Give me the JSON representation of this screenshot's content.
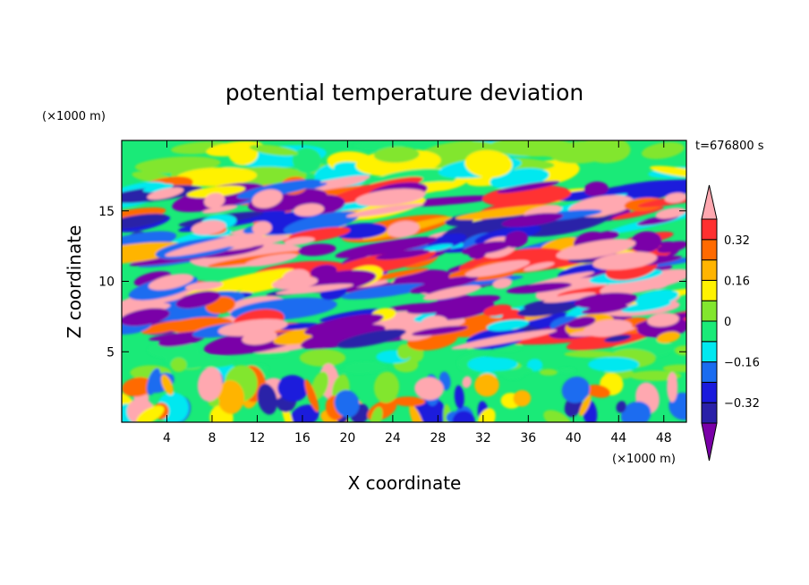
{
  "chart_data": {
    "type": "heatmap",
    "title": "potential temperature deviation",
    "xlabel": "X coordinate",
    "ylabel": "Z coordinate",
    "x_unit": "(×1000 m)",
    "y_unit": "(×1000 m)",
    "time_label": "t=676800 s",
    "xlim": [
      0,
      50
    ],
    "ylim": [
      0,
      20
    ],
    "x_ticks": [
      "4",
      "8",
      "12",
      "16",
      "20",
      "24",
      "28",
      "32",
      "36",
      "40",
      "44",
      "48"
    ],
    "x_tick_values": [
      4,
      8,
      12,
      16,
      20,
      24,
      28,
      32,
      36,
      40,
      44,
      48
    ],
    "y_ticks": [
      "5",
      "10",
      "15"
    ],
    "y_tick_values": [
      5,
      10,
      15
    ],
    "colorbar": {
      "tick_labels": [
        "0.32",
        "0.16",
        "0",
        "−0.16",
        "−0.32"
      ],
      "tick_values": [
        0.32,
        0.16,
        0,
        -0.16,
        -0.32
      ],
      "levels": [
        -0.4,
        -0.32,
        -0.24,
        -0.16,
        -0.08,
        0,
        0.08,
        0.16,
        0.24,
        0.32,
        0.4
      ],
      "colors": [
        "#7a00a8",
        "#2a20a8",
        "#1a1adc",
        "#1a6cf0",
        "#00e8f0",
        "#1aea78",
        "#82e62e",
        "#fff200",
        "#ffb400",
        "#ff6a00",
        "#ff3030",
        "#ffa8b0"
      ],
      "extend": "both"
    },
    "bands": [
      {
        "z_range": [
          17,
          19.5
        ],
        "character": "mostly near zero (greens) with scattered cyan and yellow patches"
      },
      {
        "z_range": [
          5.5,
          17
        ],
        "character": "alternating elongated layers of strong positive (pink/red) and strong negative (purple/blue) deviation"
      },
      {
        "z_range": [
          3,
          5.5
        ],
        "character": "near zero (cyan and green)"
      },
      {
        "z_range": [
          0,
          3
        ],
        "character": "mixed small positive and negative plumes"
      }
    ]
  }
}
